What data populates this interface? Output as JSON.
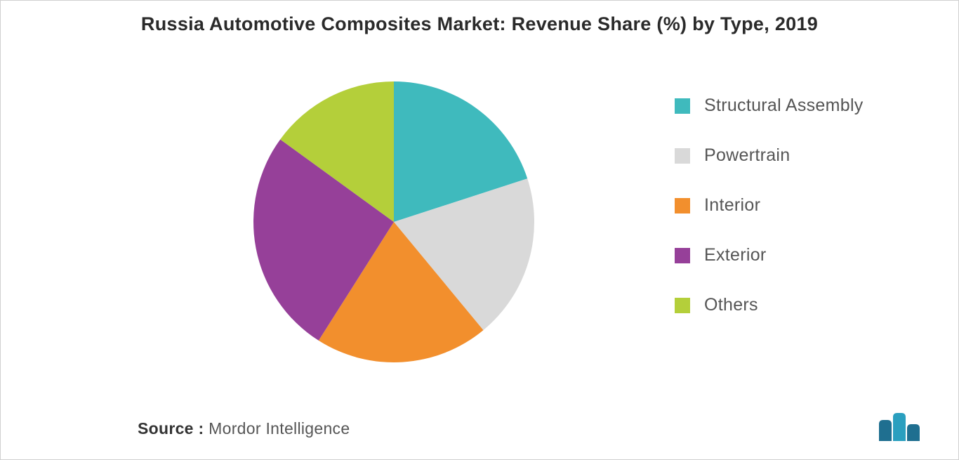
{
  "title": "Russia Automotive Composites Market: Revenue Share (%) by Type, 2019",
  "chart": {
    "type": "pie",
    "background_color": "#ffffff",
    "start_angle_deg": -90,
    "slices": [
      {
        "label": "Structural Assembly",
        "value": 20,
        "color": "#3fbabd"
      },
      {
        "label": "Powertrain",
        "value": 19,
        "color": "#d9d9d9"
      },
      {
        "label": "Interior",
        "value": 20,
        "color": "#f28f2d"
      },
      {
        "label": "Exterior",
        "value": 26,
        "color": "#964099"
      },
      {
        "label": "Others",
        "value": 15,
        "color": "#b4cf3a"
      }
    ],
    "title_fontsize": 27,
    "legend_fontsize": 25,
    "legend_text_color": "#555555"
  },
  "source_label": "Source :",
  "source_value": "Mordor Intelligence",
  "logo_colors": {
    "bar1": "#1f6f90",
    "bar2": "#2a9fbf",
    "bar3": "#1f6f90"
  }
}
